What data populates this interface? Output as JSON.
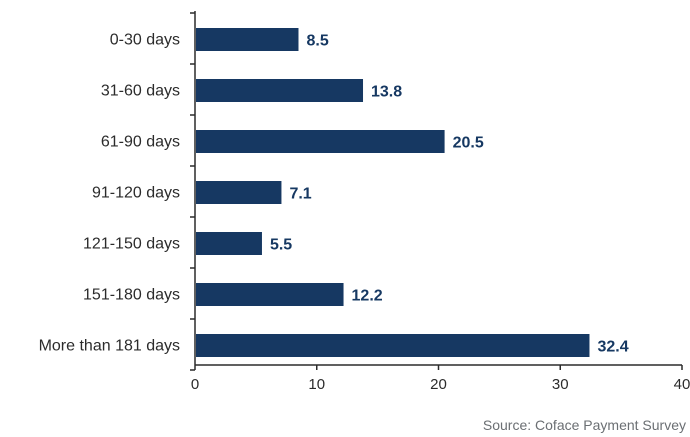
{
  "chart_data": {
    "type": "bar",
    "orientation": "horizontal",
    "categories": [
      "0-30 days",
      "31-60 days",
      "61-90 days",
      "91-120 days",
      "121-150 days",
      "151-180 days",
      "More than 181 days"
    ],
    "values": [
      8.5,
      13.8,
      20.5,
      7.1,
      5.5,
      12.2,
      32.4
    ],
    "value_labels": [
      "8.5",
      "13.8",
      "20.5",
      "7.1",
      "5.5",
      "12.2",
      "32.4"
    ],
    "xlim": [
      0,
      40
    ],
    "xticks": [
      0,
      10,
      20,
      30,
      40
    ],
    "grid": false,
    "bar_color": "#163862",
    "label_color": "#163862",
    "axis_color": "#2b2b2b"
  },
  "source": "Source: Coface Payment Survey"
}
